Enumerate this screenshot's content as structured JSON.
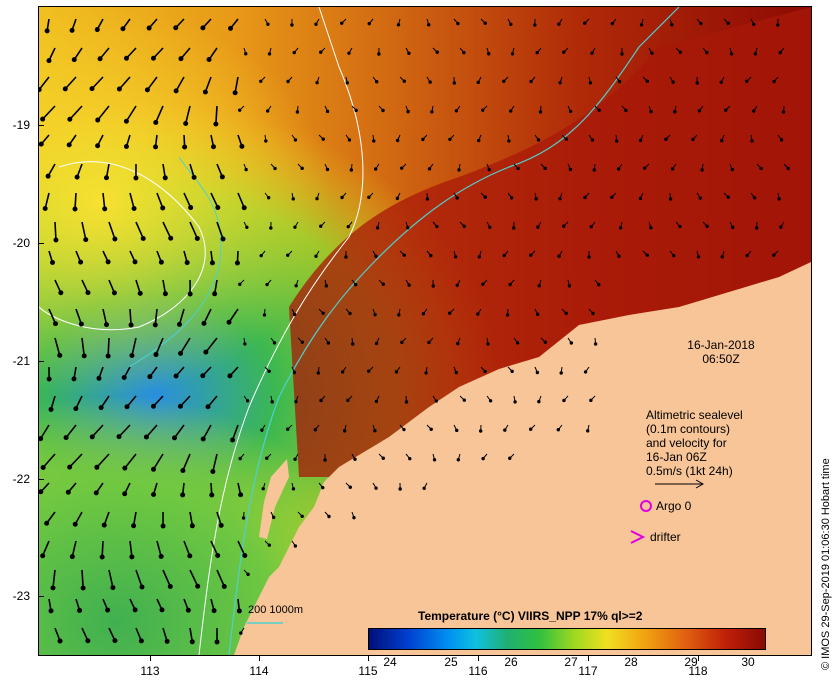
{
  "map": {
    "y_ticks": [
      "-19",
      "-20",
      "-21",
      "-22",
      "-23"
    ],
    "x_ticks": [
      "113",
      "114",
      "115",
      "116",
      "117",
      "118"
    ],
    "date": "16-Jan-2018",
    "time": "06:50Z",
    "legend_lines": [
      "Altimetric sealevel",
      "(0.1m contours)",
      "and velocity for",
      "16-Jan 06Z",
      "0.5m/s (1kt 24h)"
    ],
    "argo_label": "Argo 0",
    "drifter_label": "drifter",
    "depth_legend": "200  1000m",
    "credit": "© IMOS 29-Sep-2019 01:06:30 Hobart time",
    "colors": {
      "land": "#f7c597",
      "argo": "#e000e0",
      "contour": "#4fd0d0"
    }
  },
  "colorbar": {
    "title": "Temperature (°C) VIIRS_NPP 17% ql>=2",
    "labels": [
      "24",
      "25",
      "26",
      "27",
      "28",
      "29",
      "30"
    ]
  }
}
